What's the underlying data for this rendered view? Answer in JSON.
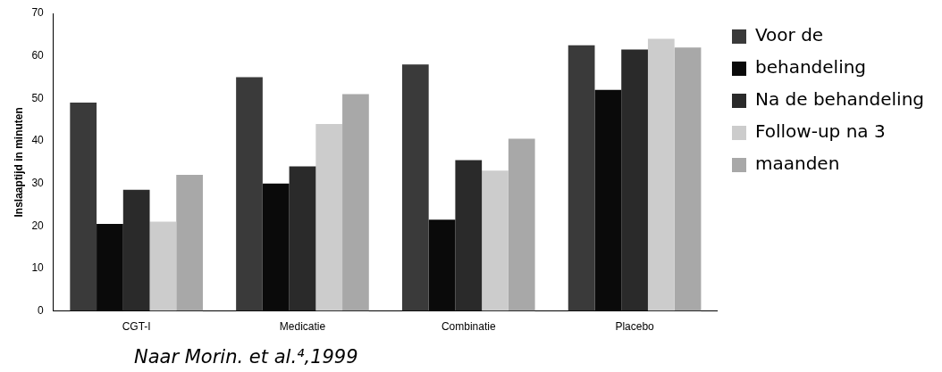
{
  "chart_data": {
    "type": "bar",
    "ylabel": "Inslaaptijd in minuten",
    "categories": [
      "CGT-I",
      "Medicatie",
      "Combinatie",
      "Placebo"
    ],
    "series": [
      {
        "name": "Voor de",
        "color": "#3a3a3a",
        "values": [
          49,
          55,
          58,
          62.5
        ]
      },
      {
        "name": "behandeling",
        "color": "#0a0a0a",
        "values": [
          20.5,
          30,
          21.5,
          52
        ]
      },
      {
        "name": "Na de behandeling",
        "color": "#2a2a2a",
        "values": [
          28.5,
          34,
          35.5,
          61.5
        ]
      },
      {
        "name": "Follow-up na 3",
        "color": "#cccccc",
        "values": [
          21,
          44,
          33,
          64
        ]
      },
      {
        "name": "maanden",
        "color": "#a8a8a8",
        "values": [
          32,
          51,
          40.5,
          62
        ]
      }
    ],
    "ylim": [
      0,
      70
    ],
    "yticks": [
      0,
      10,
      20,
      30,
      40,
      50,
      60,
      70
    ],
    "grid": false,
    "legend": "right",
    "annotations": [
      "Naar Morin. et al.⁴,1999"
    ]
  }
}
